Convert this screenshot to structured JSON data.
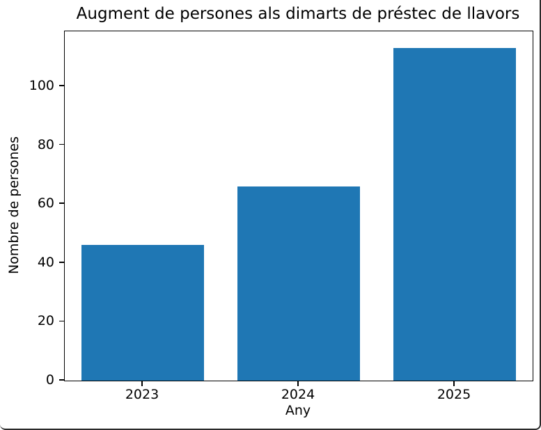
{
  "chart_data": {
    "type": "bar",
    "title": "Augment de persones als dimarts de préstec de llavors",
    "categories": [
      "2023",
      "2024",
      "2025"
    ],
    "values": [
      46,
      66,
      113
    ],
    "xlabel": "Any",
    "ylabel": "Nombre de persones",
    "ylim": [
      0,
      118.65
    ],
    "yticks": [
      0,
      20,
      40,
      60,
      80,
      100
    ],
    "bar_color": "#1f77b4",
    "grid": false,
    "legend_position": "none"
  }
}
